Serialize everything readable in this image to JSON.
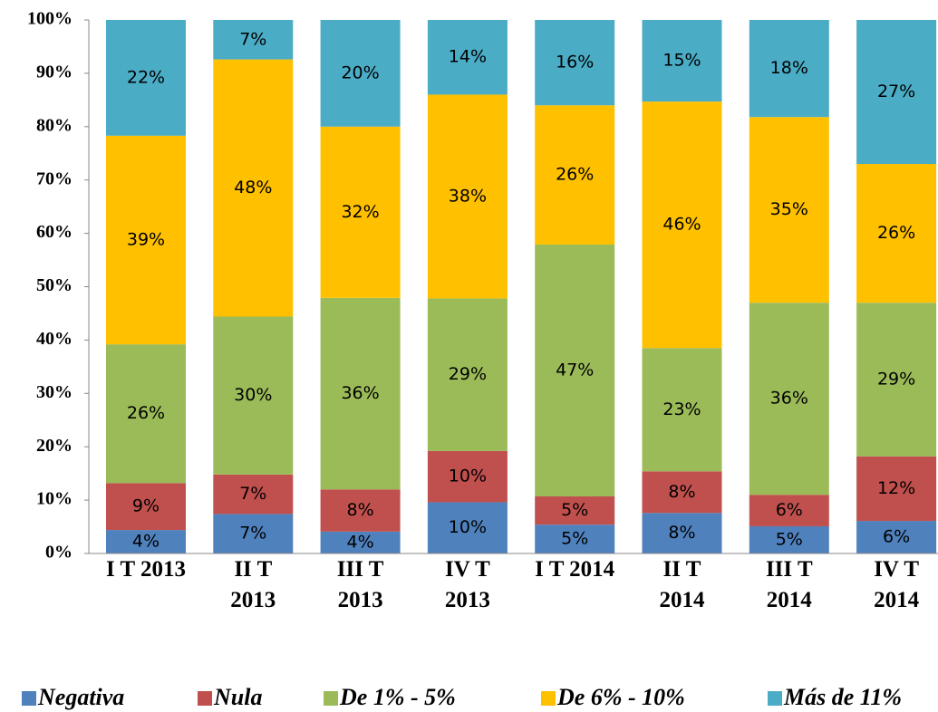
{
  "chart_data": {
    "type": "stacked_bar",
    "categories": [
      "I T 2013",
      "II T\n2013",
      "III T\n2013",
      "IV T\n2013",
      "I T 2014",
      "II T\n2014",
      "III T\n2014",
      "IV T\n2014"
    ],
    "ylim": [
      0,
      100
    ],
    "yticks": [
      {
        "value": 0,
        "label": "0%"
      },
      {
        "value": 10,
        "label": "10%"
      },
      {
        "value": 20,
        "label": "20%"
      },
      {
        "value": 30,
        "label": "30%"
      },
      {
        "value": 40,
        "label": "40%"
      },
      {
        "value": 50,
        "label": "50%"
      },
      {
        "value": 60,
        "label": "60%"
      },
      {
        "value": 70,
        "label": "70%"
      },
      {
        "value": 80,
        "label": "80%"
      },
      {
        "value": 90,
        "label": "90%"
      },
      {
        "value": 100,
        "label": "100%"
      }
    ],
    "legend": "bottom",
    "series": [
      {
        "name": "Negativa",
        "color": "#4f81bd",
        "values": [
          4.4,
          7.4,
          4.1,
          9.6,
          5.4,
          7.6,
          5.1,
          6.1
        ],
        "value_labels": [
          "4%",
          "7%",
          "4%",
          "10%",
          "5%",
          "8%",
          "5%",
          "6%"
        ]
      },
      {
        "name": "Nula",
        "color": "#c0504d",
        "values": [
          8.8,
          7.4,
          7.9,
          9.6,
          5.3,
          7.8,
          5.9,
          12.1
        ],
        "value_labels": [
          "9%",
          "7%",
          "8%",
          "10%",
          "5%",
          "8%",
          "6%",
          "12%"
        ]
      },
      {
        "name": "De 1% - 5%",
        "color": "#9bbb59",
        "values": [
          26,
          29.6,
          35.9,
          28.6,
          47.2,
          23.1,
          36,
          28.8
        ],
        "value_labels": [
          "26%",
          "30%",
          "36%",
          "29%",
          "47%",
          "23%",
          "36%",
          "29%"
        ]
      },
      {
        "name": "De 6% - 10%",
        "color": "#ffc000",
        "values": [
          39.1,
          48.2,
          32.1,
          38.2,
          26.1,
          46.2,
          34.8,
          26
        ],
        "value_labels": [
          "39%",
          "48%",
          "32%",
          "38%",
          "26%",
          "46%",
          "35%",
          "26%"
        ]
      },
      {
        "name": "Más de 11%",
        "color": "#4bacc6",
        "values": [
          21.7,
          7.4,
          20,
          14,
          16,
          15.3,
          18.2,
          27
        ],
        "value_labels": [
          "22%",
          "7%",
          "20%",
          "14%",
          "16%",
          "15%",
          "18%",
          "27%"
        ]
      }
    ]
  }
}
